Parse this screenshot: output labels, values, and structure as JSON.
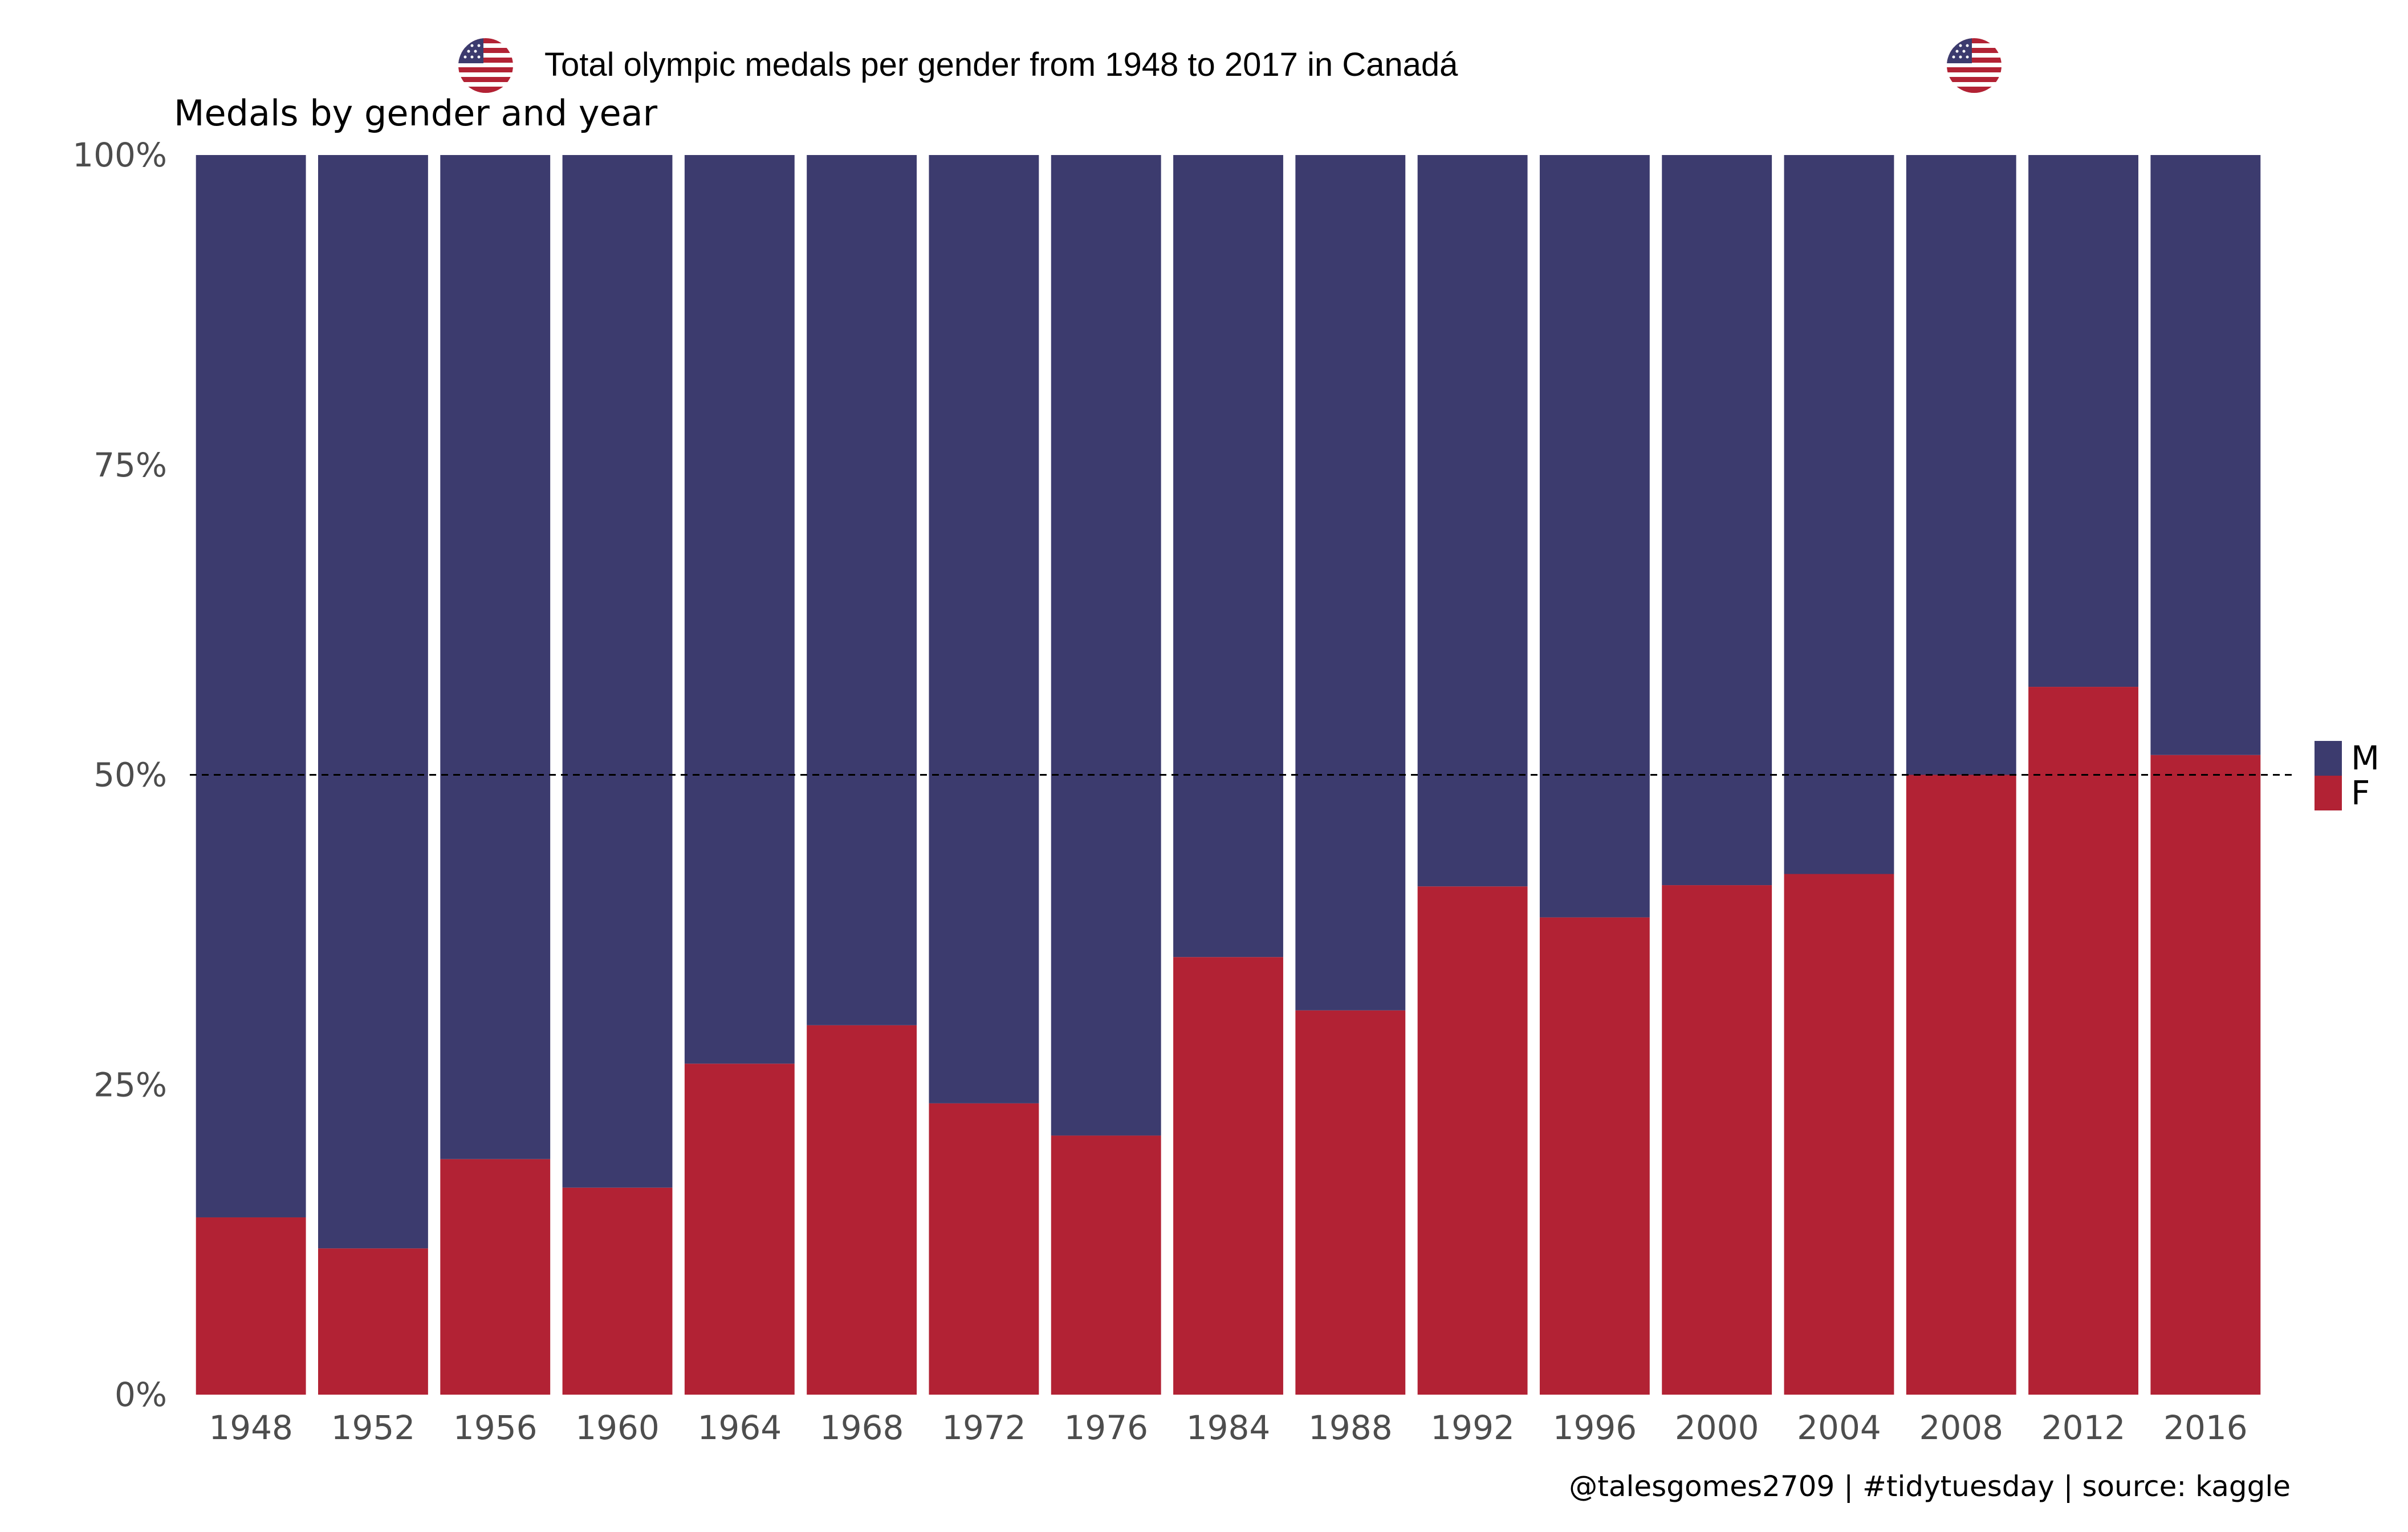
{
  "header": {
    "title": "Total olympic medals per gender from 1948 to 2017 in Canadá",
    "flag_icon": "us-flag-icon"
  },
  "chart_data": {
    "type": "bar",
    "stacked": true,
    "percent": true,
    "subtitle": "Medals by gender and year",
    "categories": [
      "1948",
      "1952",
      "1956",
      "1960",
      "1964",
      "1968",
      "1972",
      "1976",
      "1984",
      "1988",
      "1992",
      "1996",
      "2000",
      "2004",
      "2008",
      "2012",
      "2016"
    ],
    "series": [
      {
        "name": "F",
        "color": "#B22234",
        "values": [
          14.3,
          11.8,
          19.0,
          16.7,
          26.7,
          29.8,
          23.5,
          20.9,
          35.3,
          31.0,
          41.0,
          38.5,
          41.1,
          42.0,
          50.0,
          57.1,
          51.6
        ]
      },
      {
        "name": "M",
        "color": "#3C3B6E",
        "values": [
          85.7,
          88.2,
          81.0,
          83.3,
          73.3,
          70.2,
          76.5,
          79.1,
          64.7,
          69.0,
          59.0,
          61.5,
          58.9,
          58.0,
          50.0,
          42.9,
          48.4
        ]
      }
    ],
    "yticks": [
      "0%",
      "25%",
      "50%",
      "75%",
      "100%"
    ],
    "ylim": [
      0,
      100
    ],
    "reference_line": {
      "y": 50,
      "style": "dashed"
    },
    "legend": {
      "position": "right",
      "entries": [
        "M",
        "F"
      ]
    },
    "xlabel": "",
    "ylabel": ""
  },
  "caption": "@talesgomes2709 | #tidytuesday | source: kaggle"
}
